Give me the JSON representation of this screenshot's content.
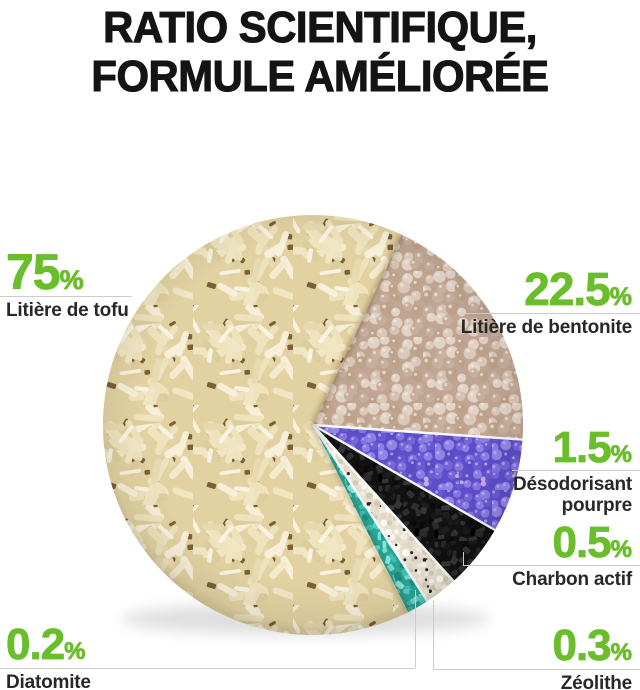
{
  "title": {
    "line1": "RATIO SCIENTIFIQUE,",
    "line2": "FORMULE AMÉLIORÉE"
  },
  "colors": {
    "accent_green": "#6abe2b",
    "callout_line": "#cccccc",
    "title_text": "#141414",
    "label_text": "#282828",
    "background": "#ffffff"
  },
  "chart_data": {
    "type": "pie",
    "title": "RATIO SCIENTIFIQUE, FORMULE AMÉLIORÉE",
    "unit": "%",
    "legend_position": "radial-callouts",
    "slices": [
      {
        "label": "Litière de tofu",
        "value": 75,
        "display": "75",
        "material_color": "#e2d2a2"
      },
      {
        "label": "Litière de bentonite",
        "value": 22.5,
        "display": "22.5",
        "material_color": "#c0a593"
      },
      {
        "label": "Désodorisant pourpre",
        "value": 1.5,
        "display": "1.5",
        "material_color": "#5e4dc8"
      },
      {
        "label": "Charbon actif",
        "value": 0.5,
        "display": "0.5",
        "material_color": "#111111"
      },
      {
        "label": "Zéolithe",
        "value": 0.3,
        "display": "0.3",
        "material_color": "#e5dfcf"
      },
      {
        "label": "Diatomite",
        "value": 0.2,
        "display": "0.2",
        "material_color": "#2aa596"
      }
    ]
  }
}
